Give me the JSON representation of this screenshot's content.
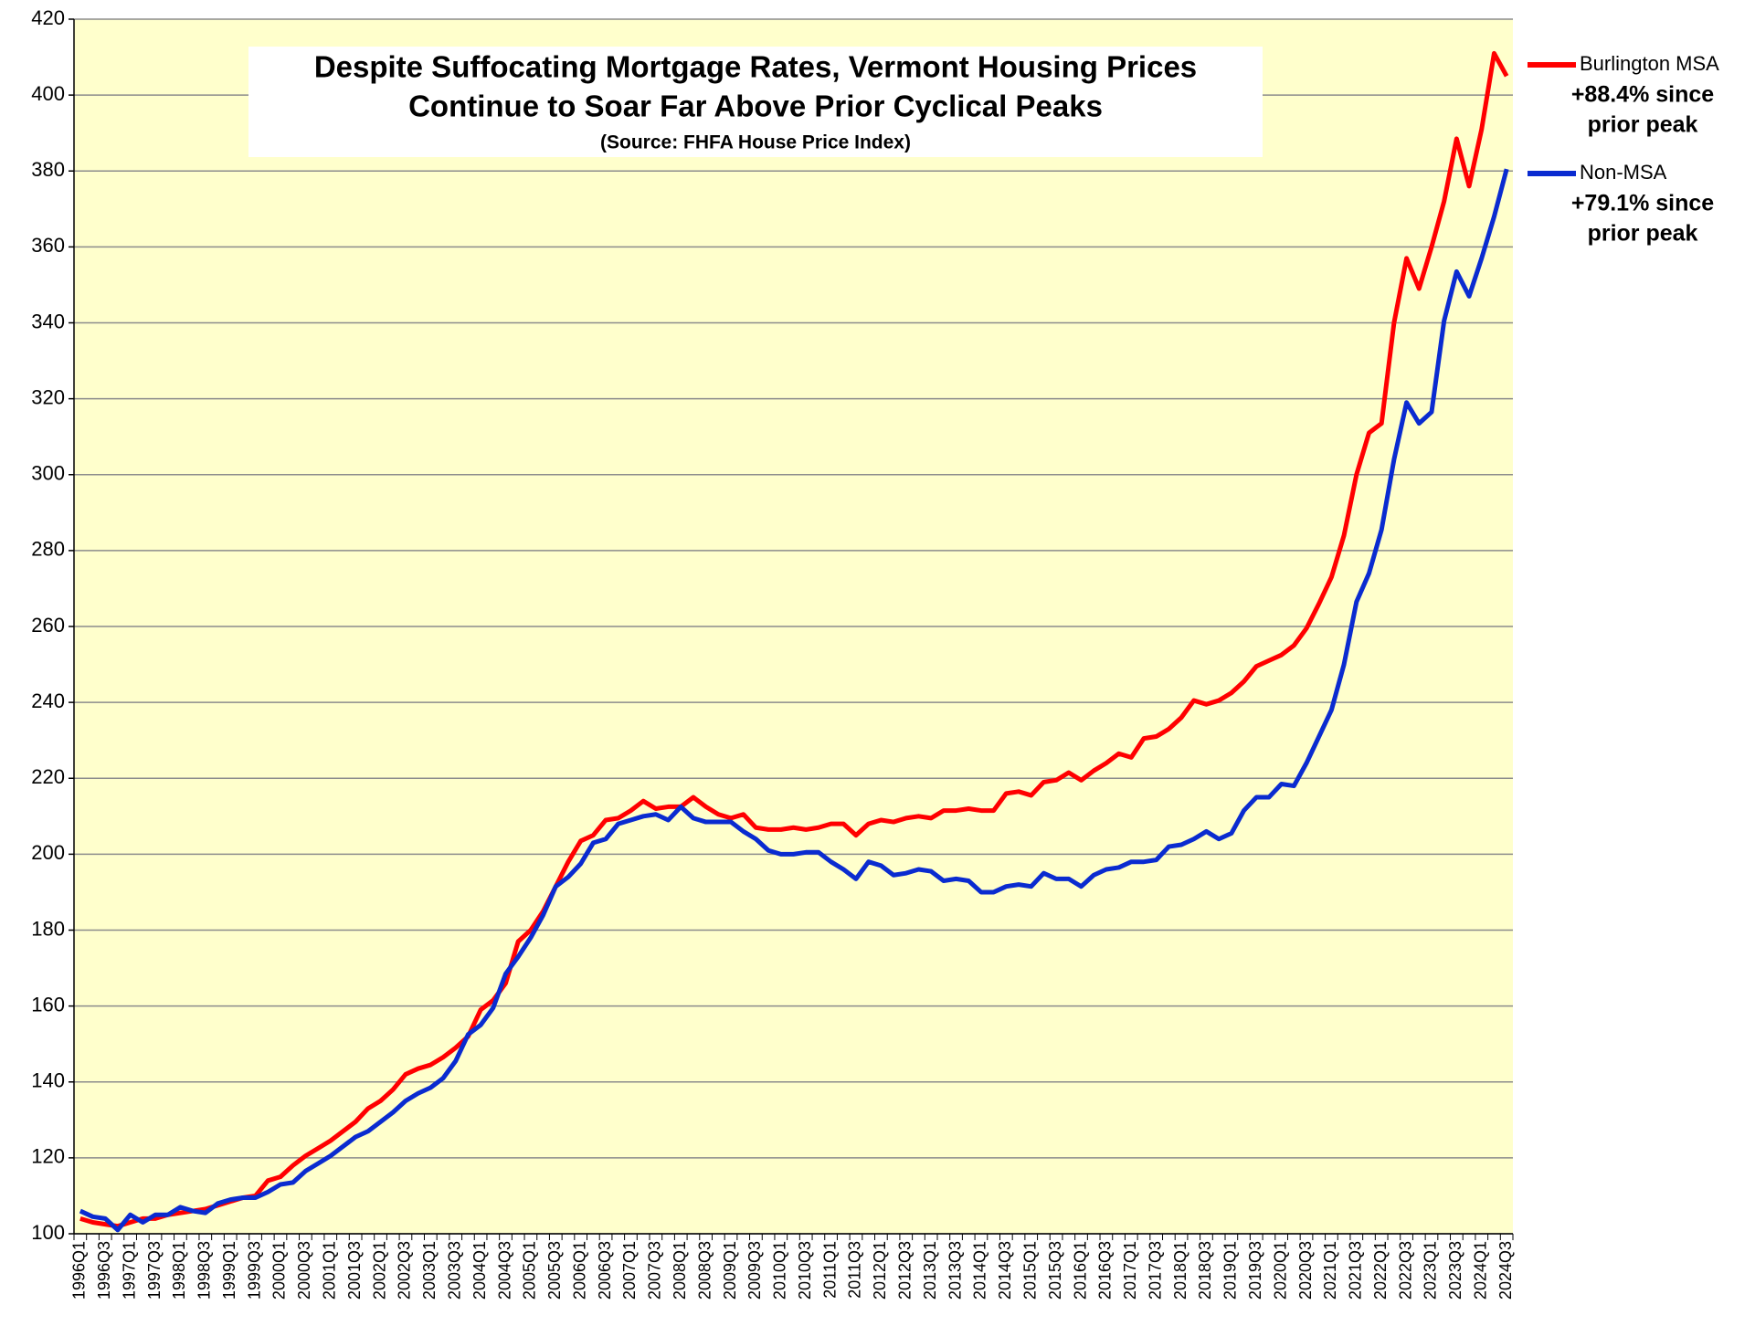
{
  "chart_data": {
    "type": "line",
    "title": [
      "Despite Suffocating Mortgage Rates, Vermont Housing Prices",
      "Continue to Soar Far Above Prior Cyclical Peaks"
    ],
    "subtitle": "(Source:  FHFA House Price Index)",
    "categories": [
      "1996Q1",
      null,
      "1996Q3",
      null,
      "1997Q1",
      null,
      "1997Q3",
      null,
      "1998Q1",
      null,
      "1998Q3",
      null,
      "1999Q1",
      null,
      "1999Q3",
      null,
      "2000Q1",
      null,
      "2000Q3",
      null,
      "2001Q1",
      null,
      "2001Q3",
      null,
      "2002Q1",
      null,
      "2002Q3",
      null,
      "2003Q1",
      null,
      "2003Q3",
      null,
      "2004Q1",
      null,
      "2004Q3",
      null,
      "2005Q1",
      null,
      "2005Q3",
      null,
      "2006Q1",
      null,
      "2006Q3",
      null,
      "2007Q1",
      null,
      "2007Q3",
      null,
      "2008Q1",
      null,
      "2008Q3",
      null,
      "2009Q1",
      null,
      "2009Q3",
      null,
      "2010Q1",
      null,
      "2010Q3",
      null,
      "2011Q1",
      null,
      "2011Q3",
      null,
      "2012Q1",
      null,
      "2012Q3",
      null,
      "2013Q1",
      null,
      "2013Q3",
      null,
      "2014Q1",
      null,
      "2014Q3",
      null,
      "2015Q1",
      null,
      "2015Q3",
      null,
      "2016Q1",
      null,
      "2016Q3",
      null,
      "2017Q1",
      null,
      "2017Q3",
      null,
      "2018Q1",
      null,
      "2018Q3",
      null,
      "2019Q1",
      null,
      "2019Q3",
      null,
      "2020Q1",
      null,
      "2020Q3",
      null,
      "2021Q1",
      null,
      "2021Q3",
      null,
      "2022Q1",
      null,
      "2022Q3",
      null,
      "2023Q1",
      null,
      "2023Q3",
      null,
      "2024Q1",
      null,
      "2024Q3"
    ],
    "series": [
      {
        "name": "Burlington MSA",
        "color": "#ff0000",
        "annotation": [
          "+88.4% since",
          "prior peak"
        ],
        "values": [
          104,
          103,
          102.5,
          102,
          103,
          104,
          104,
          105,
          105.5,
          106,
          106.5,
          107.5,
          108.5,
          109.5,
          110,
          114,
          115,
          118,
          120.5,
          122.5,
          124.5,
          127,
          129.5,
          133,
          135,
          138,
          142,
          143.5,
          144.5,
          146.5,
          149,
          152,
          159,
          161.5,
          166,
          177,
          180,
          185,
          191.5,
          198,
          203.5,
          205,
          209,
          209.5,
          211.5,
          214,
          212,
          212.5,
          212.5,
          215,
          212.5,
          210.5,
          209.5,
          210.5,
          207,
          206.5,
          206.5,
          207,
          206.5,
          207,
          208,
          208,
          205,
          208,
          209,
          208.5,
          209.5,
          210,
          209.5,
          211.5,
          211.5,
          212,
          211.5,
          211.5,
          216,
          216.5,
          215.5,
          219,
          219.5,
          221.5,
          219.5,
          222,
          224,
          226.5,
          225.5,
          230.5,
          231,
          233,
          236,
          240.5,
          239.5,
          240.5,
          242.5,
          245.5,
          249.5,
          251,
          252.5,
          255,
          259.5,
          266,
          273,
          284,
          300,
          311,
          313.5,
          340,
          357,
          349,
          360,
          372,
          388.5,
          376,
          391,
          411,
          405
        ]
      },
      {
        "name": "Non-MSA",
        "color": "#0a2bd0",
        "annotation": [
          "+79.1% since",
          "prior peak"
        ],
        "values": [
          106,
          104.5,
          104,
          101,
          105,
          103,
          105,
          105,
          107,
          106,
          105.5,
          108,
          109,
          109.5,
          109.5,
          111,
          113,
          113.5,
          116.5,
          118.5,
          120.5,
          123,
          125.5,
          127,
          129.5,
          132,
          135,
          137,
          138.5,
          141,
          145.5,
          152.5,
          155,
          159.5,
          168.5,
          173,
          178,
          184,
          191.5,
          194,
          197.5,
          203,
          204,
          208,
          209,
          210,
          210.5,
          209,
          212.5,
          209.5,
          208.5,
          208.5,
          208.5,
          206,
          204,
          201,
          200,
          200,
          200.5,
          200.5,
          198,
          196,
          193.5,
          198,
          197,
          194.5,
          195,
          196,
          195.5,
          193,
          193.5,
          193,
          190,
          190,
          191.5,
          192,
          191.5,
          195,
          193.5,
          193.5,
          191.5,
          194.5,
          196,
          196.5,
          198,
          198,
          198.5,
          202,
          202.5,
          204,
          206,
          204,
          205.5,
          211.5,
          215,
          215,
          218.5,
          218,
          224,
          231,
          238,
          250,
          266.5,
          274,
          285.5,
          304,
          319,
          313.5,
          316.5,
          340.5,
          353.5,
          347,
          357,
          368,
          380.5
        ]
      }
    ],
    "ylim": [
      100,
      420
    ],
    "yticks": [
      100,
      120,
      140,
      160,
      180,
      200,
      220,
      240,
      260,
      280,
      300,
      320,
      340,
      360,
      380,
      400,
      420
    ],
    "grid": true,
    "legend": "right",
    "background": "#ffffcc"
  }
}
